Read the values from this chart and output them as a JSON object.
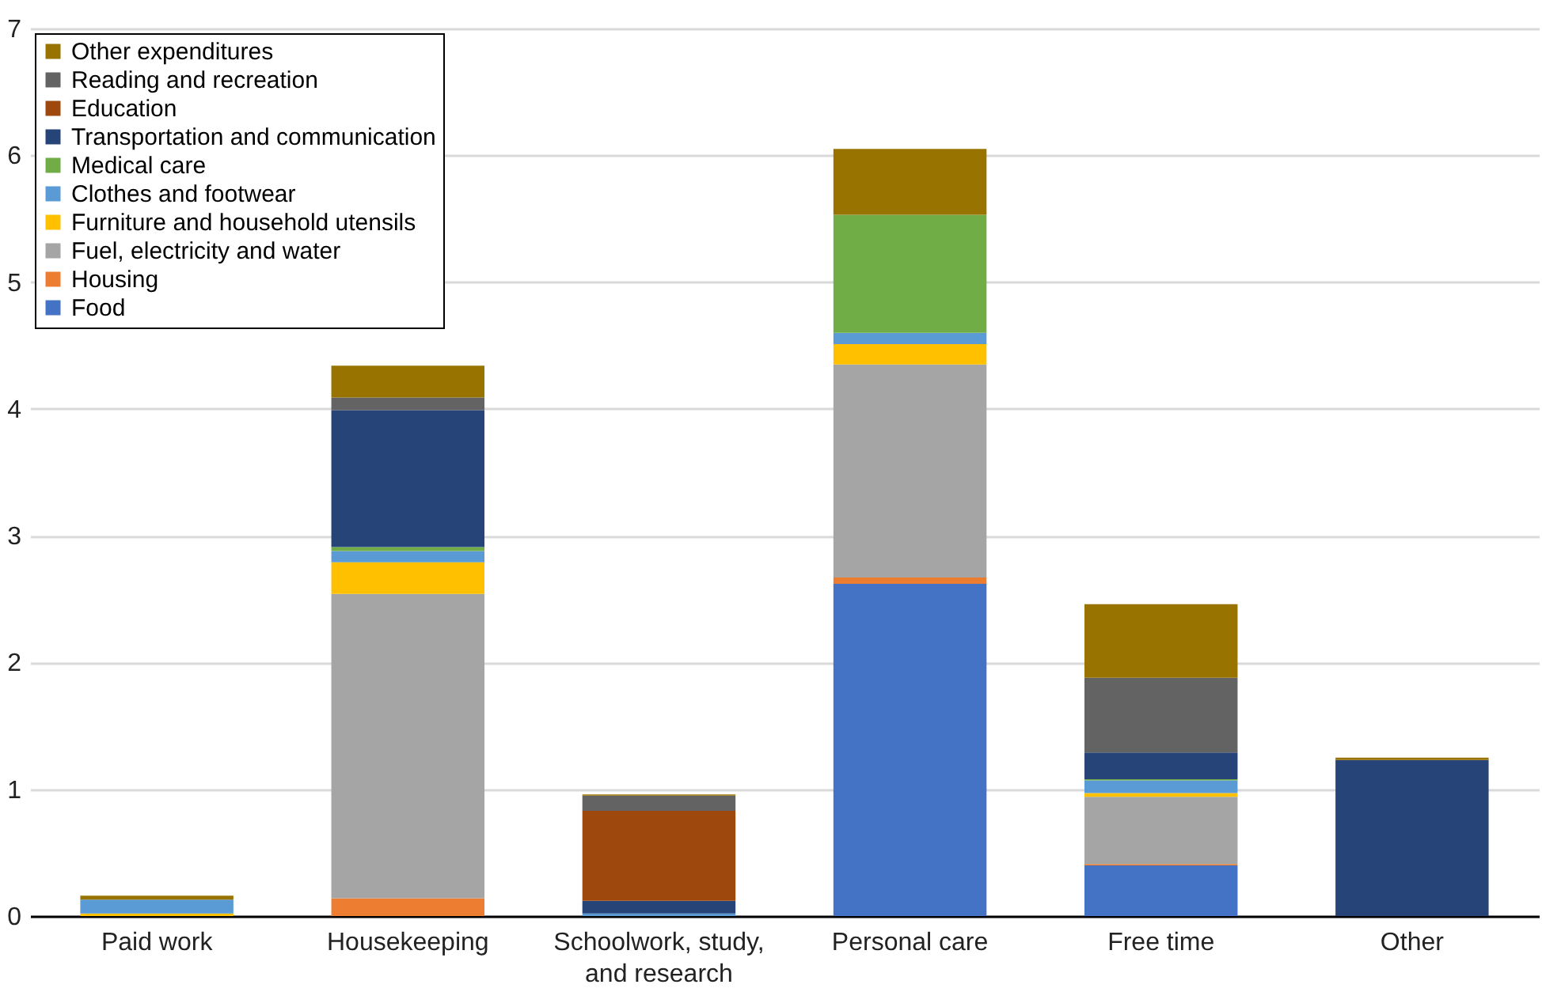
{
  "chart_data": {
    "type": "bar",
    "stacked": true,
    "categories": [
      "Paid work",
      "Housekeeping",
      "Schoolwork, study, and research",
      "Personal care",
      "Free time",
      "Other"
    ],
    "series": [
      {
        "name": "Food",
        "color": "#4472c4",
        "values": [
          0,
          0,
          0,
          2.62,
          0.4,
          0
        ]
      },
      {
        "name": "Housing",
        "color": "#ed7d31",
        "values": [
          0,
          0.14,
          0,
          0.05,
          0.01,
          0
        ]
      },
      {
        "name": "Fuel, electricity and water",
        "color": "#a5a5a5",
        "values": [
          0,
          2.4,
          0,
          1.68,
          0.53,
          0
        ]
      },
      {
        "name": "Furniture and household utensils",
        "color": "#ffc000",
        "values": [
          0.02,
          0.25,
          0,
          0.16,
          0.03,
          0
        ]
      },
      {
        "name": "Clothes and footwear",
        "color": "#5b9bd5",
        "values": [
          0.11,
          0.09,
          0.02,
          0.09,
          0.1,
          0
        ]
      },
      {
        "name": "Medical care",
        "color": "#70ad47",
        "values": [
          0,
          0.03,
          0,
          0.93,
          0.01,
          0
        ]
      },
      {
        "name": "Transportation and communication",
        "color": "#264478",
        "values": [
          0,
          1.08,
          0.1,
          0,
          0.21,
          1.23
        ]
      },
      {
        "name": "Education",
        "color": "#9e480e",
        "values": [
          0,
          0,
          0.71,
          0,
          0,
          0
        ]
      },
      {
        "name": "Reading and recreation",
        "color": "#636363",
        "values": [
          0,
          0.1,
          0.12,
          0,
          0.59,
          0
        ]
      },
      {
        "name": "Other expenditures",
        "color": "#997300",
        "values": [
          0.03,
          0.25,
          0.01,
          0.52,
          0.58,
          0.02
        ]
      }
    ],
    "ylim": [
      0,
      7
    ],
    "yticks": [
      0,
      1,
      2,
      3,
      4,
      5,
      6,
      7
    ],
    "grid": "y",
    "legend": "top left"
  }
}
